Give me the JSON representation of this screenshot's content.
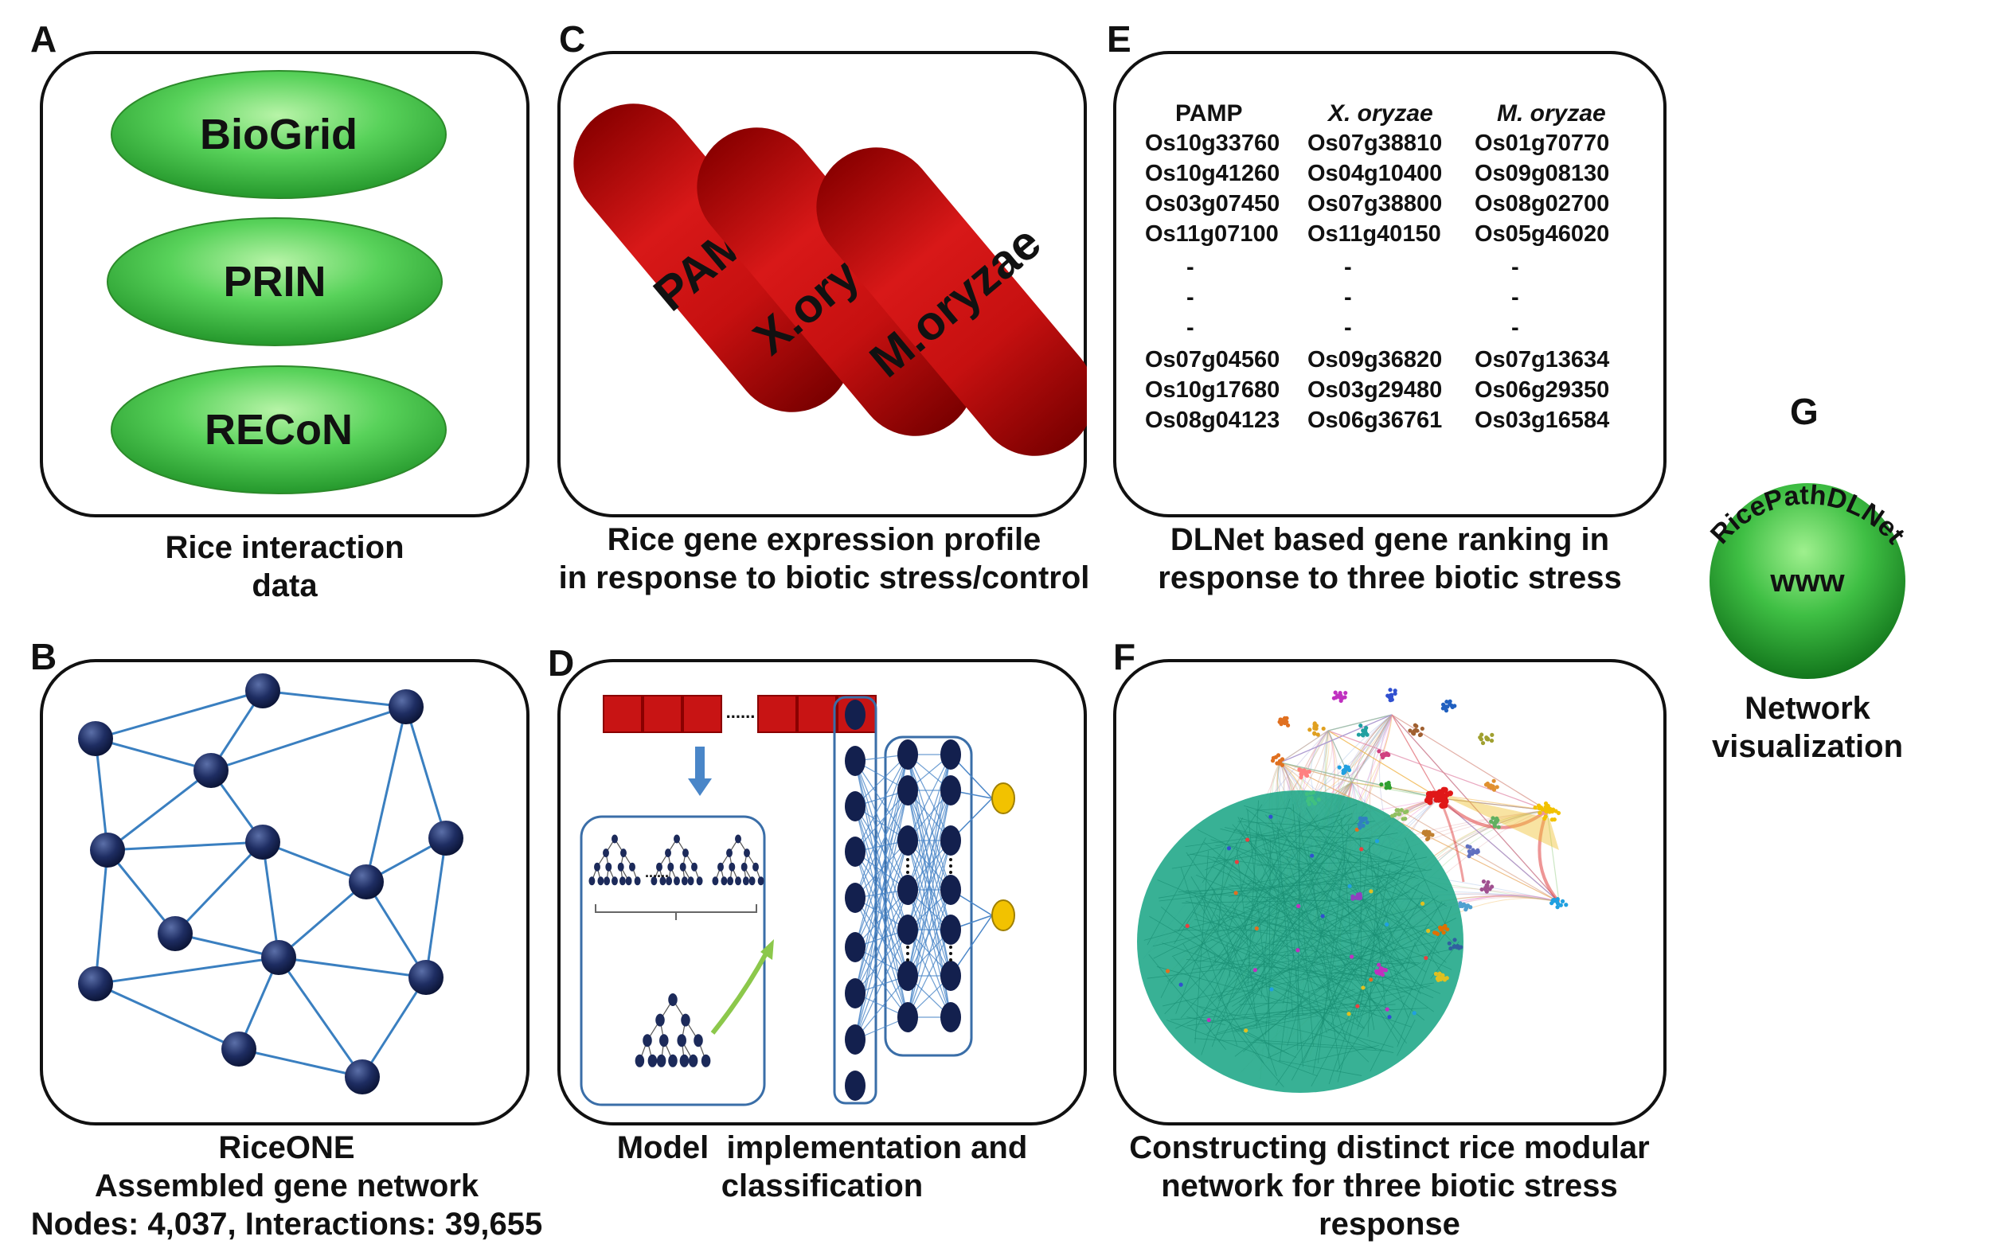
{
  "panels": {
    "A": {
      "letter": "A",
      "ellipses": [
        "BioGrid",
        "PRIN",
        "RECoN"
      ],
      "caption": [
        "Rice interaction",
        "data"
      ]
    },
    "B": {
      "letter": "B",
      "caption": [
        "RiceONE",
        "Assembled gene network",
        "Nodes: 4,037, Interactions: 39,655"
      ]
    },
    "C": {
      "letter": "C",
      "capsules": [
        "PAMP",
        "X.oryzae",
        "M.oryzae"
      ],
      "caption": [
        "Rice gene expression profile",
        "in response to biotic stress/control"
      ]
    },
    "D": {
      "letter": "D",
      "dots_label": "......",
      "caption": [
        "Model  implementation and",
        "classification"
      ]
    },
    "E": {
      "letter": "E",
      "headers": [
        "PAMP",
        "X. oryzae",
        "M. oryzae"
      ],
      "rows_top": [
        [
          "Os10g33760",
          "Os07g38810",
          "Os01g70770"
        ],
        [
          "Os10g41260",
          "Os04g10400",
          "Os09g08130"
        ],
        [
          "Os03g07450",
          "Os07g38800",
          "Os08g02700"
        ],
        [
          "Os11g07100",
          "Os11g40150",
          "Os05g46020"
        ]
      ],
      "dash": "-",
      "rows_bottom": [
        [
          "Os07g04560",
          "Os09g36820",
          "Os07g13634"
        ],
        [
          "Os10g17680",
          "Os03g29480",
          "Os06g29350"
        ],
        [
          "Os08g04123",
          "Os06g36761",
          "Os03g16584"
        ]
      ],
      "caption": [
        "DLNet based gene ranking in",
        "response to three biotic stress"
      ]
    },
    "F": {
      "letter": "F",
      "caption": [
        "Constructing distinct rice modular",
        "network for three biotic stress",
        "response"
      ]
    },
    "G": {
      "letter": "G",
      "arc_text": "RicePathDLNet",
      "sphere_text": "www",
      "caption": [
        "Network",
        "visualization"
      ]
    }
  },
  "colors": {
    "green_light": "#7fe07a",
    "green_dark": "#1f9a2a",
    "red": "#c81414",
    "red_dark": "#8a0000",
    "node_navy": "#1c2a5a",
    "edge_blue": "#3a7fc0",
    "teal": "#22a88a",
    "yellow": "#f2c200"
  }
}
